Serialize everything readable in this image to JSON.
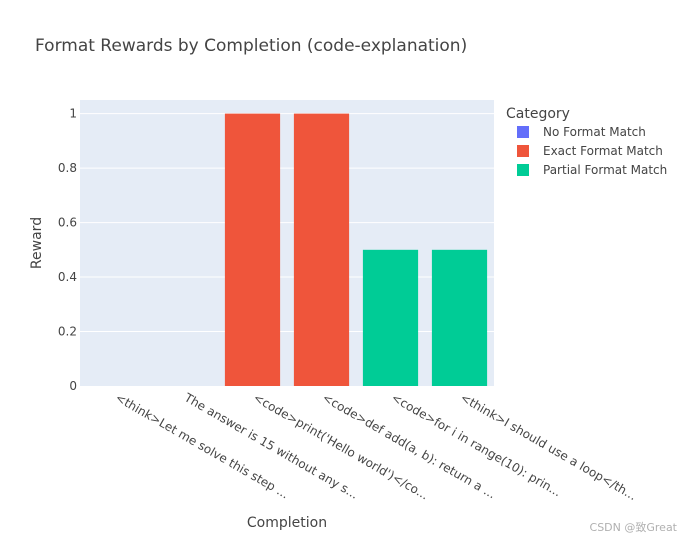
{
  "chart_data": {
    "type": "bar",
    "title": "Format Rewards by Completion (code-explanation)",
    "xlabel": "Completion",
    "ylabel": "Reward",
    "ylim": [
      0,
      1.05
    ],
    "yticks": [
      0,
      0.2,
      0.4,
      0.6,
      0.8,
      1
    ],
    "ytick_labels": [
      "0",
      "0.2",
      "0.4",
      "0.6",
      "0.8",
      "1"
    ],
    "categories": [
      "<think>Let me solve this step ...",
      "The answer is 15 without any s...",
      "<code>print('Hello world')</co...",
      "<code>def add(a, b): return a ...",
      "<code>for i in range(10): prin...",
      "<think>I should use a loop</th..."
    ],
    "values": [
      0,
      0,
      1,
      1,
      0.5,
      0.5
    ],
    "bar_category": [
      "No Format Match",
      "No Format Match",
      "Exact Format Match",
      "Exact Format Match",
      "Partial Format Match",
      "Partial Format Match"
    ],
    "legend": {
      "title": "Category",
      "position": "right",
      "items": [
        {
          "name": "No Format Match",
          "color": "#636efa"
        },
        {
          "name": "Exact Format Match",
          "color": "#ef553b"
        },
        {
          "name": "Partial Format Match",
          "color": "#00cc96"
        }
      ]
    },
    "plot_bg": "#e5ecf6",
    "grid": true
  },
  "watermark": "CSDN @致Great"
}
